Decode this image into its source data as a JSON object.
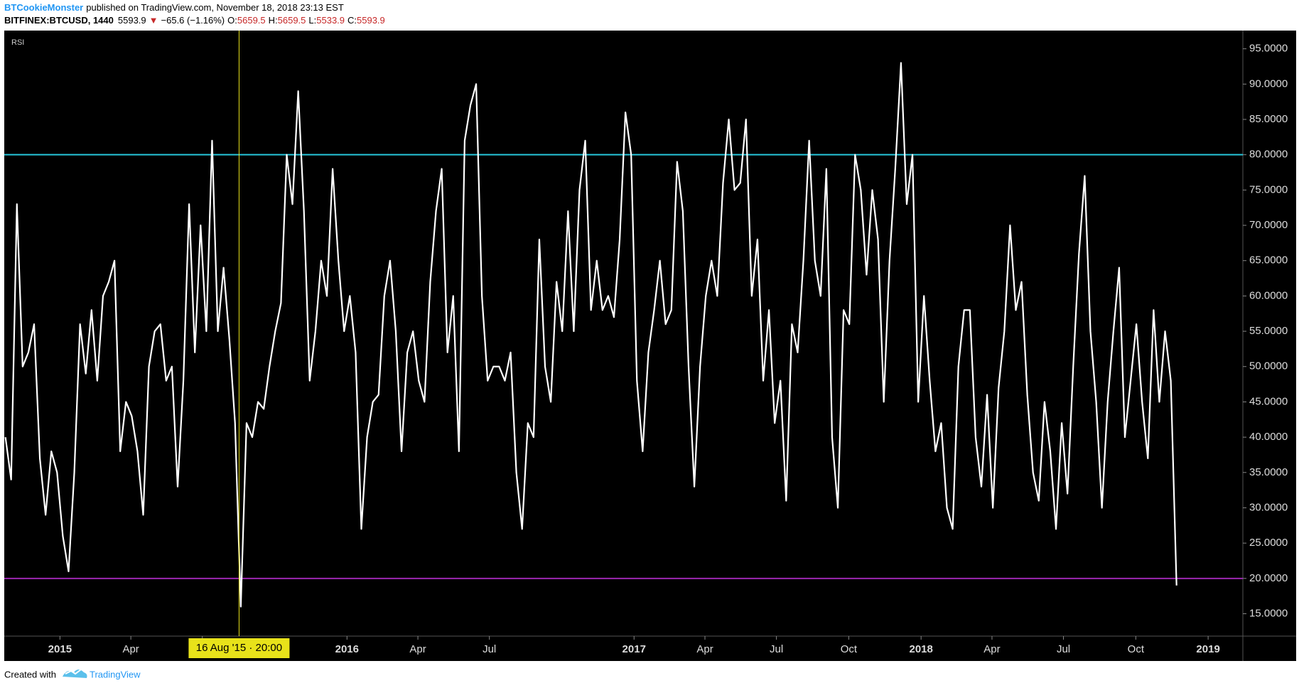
{
  "header": {
    "author": "BTCookieMonster",
    "published": "published on TradingView.com, November 18, 2018 23:13 EST",
    "symbol": "BITFINEX:BTCUSD, 1440",
    "last": "5593.9",
    "arrow": "▼",
    "change": "−65.6 (−1.16%)",
    "ohlc": [
      {
        "key": "O:",
        "value": "5659.5"
      },
      {
        "key": "H:",
        "value": "5659.5"
      },
      {
        "key": "L:",
        "value": "5533.9"
      },
      {
        "key": "C:",
        "value": "5593.9"
      }
    ]
  },
  "footer": {
    "created": "Created with",
    "brand": "TradingView"
  },
  "chart_data": {
    "type": "line",
    "title": "RSI",
    "x": [
      2014.81,
      2014.83,
      2014.85,
      2014.87,
      2014.89,
      2014.91,
      2014.93,
      2014.95,
      2014.97,
      2014.99,
      2015.01,
      2015.03,
      2015.05,
      2015.07,
      2015.09,
      2015.11,
      2015.13,
      2015.15,
      2015.17,
      2015.19,
      2015.21,
      2015.23,
      2015.25,
      2015.27,
      2015.29,
      2015.31,
      2015.33,
      2015.35,
      2015.37,
      2015.39,
      2015.41,
      2015.43,
      2015.45,
      2015.47,
      2015.49,
      2015.51,
      2015.53,
      2015.55,
      2015.57,
      2015.59,
      2015.61,
      2015.63,
      2015.65,
      2015.67,
      2015.69,
      2015.71,
      2015.73,
      2015.75,
      2015.77,
      2015.79,
      2015.81,
      2015.83,
      2015.85,
      2015.87,
      2015.89,
      2015.91,
      2015.93,
      2015.95,
      2015.97,
      2015.99,
      2016.01,
      2016.03,
      2016.05,
      2016.07,
      2016.09,
      2016.11,
      2016.13,
      2016.15,
      2016.17,
      2016.19,
      2016.21,
      2016.23,
      2016.25,
      2016.27,
      2016.29,
      2016.31,
      2016.33,
      2016.35,
      2016.37,
      2016.39,
      2016.41,
      2016.43,
      2016.45,
      2016.47,
      2016.49,
      2016.51,
      2016.53,
      2016.55,
      2016.57,
      2016.59,
      2016.61,
      2016.63,
      2016.65,
      2016.67,
      2016.69,
      2016.71,
      2016.73,
      2016.75,
      2016.77,
      2016.79,
      2016.81,
      2016.83,
      2016.85,
      2016.87,
      2016.89,
      2016.91,
      2016.93,
      2016.95,
      2016.97,
      2016.99,
      2017.01,
      2017.03,
      2017.05,
      2017.07,
      2017.09,
      2017.11,
      2017.13,
      2017.15,
      2017.17,
      2017.19,
      2017.21,
      2017.23,
      2017.25,
      2017.27,
      2017.29,
      2017.31,
      2017.33,
      2017.35,
      2017.37,
      2017.39,
      2017.41,
      2017.43,
      2017.45,
      2017.47,
      2017.49,
      2017.51,
      2017.53,
      2017.55,
      2017.57,
      2017.59,
      2017.61,
      2017.63,
      2017.65,
      2017.67,
      2017.69,
      2017.71,
      2017.73,
      2017.75,
      2017.77,
      2017.79,
      2017.81,
      2017.83,
      2017.85,
      2017.87,
      2017.89,
      2017.91,
      2017.93,
      2017.95,
      2017.97,
      2017.99,
      2018.01,
      2018.03,
      2018.05,
      2018.07,
      2018.09,
      2018.11,
      2018.13,
      2018.15,
      2018.17,
      2018.19,
      2018.21,
      2018.23,
      2018.25,
      2018.27,
      2018.29,
      2018.31,
      2018.33,
      2018.35,
      2018.37,
      2018.39,
      2018.41,
      2018.43,
      2018.45,
      2018.47,
      2018.49,
      2018.51,
      2018.53,
      2018.55,
      2018.57,
      2018.59,
      2018.61,
      2018.63,
      2018.65,
      2018.67,
      2018.69,
      2018.71,
      2018.73,
      2018.75,
      2018.77,
      2018.79,
      2018.81,
      2018.83,
      2018.85,
      2018.87,
      2018.89
    ],
    "series": [
      {
        "name": "RSI",
        "color": "#ffffff",
        "values": [
          40,
          34,
          73,
          50,
          52,
          56,
          37,
          29,
          38,
          35,
          26,
          21,
          35,
          56,
          49,
          58,
          48,
          60,
          62,
          65,
          38,
          45,
          43,
          38,
          29,
          50,
          55,
          56,
          48,
          50,
          33,
          48,
          73,
          52,
          70,
          55,
          82,
          55,
          64,
          54,
          42,
          16,
          42,
          40,
          45,
          44,
          50,
          55,
          59,
          80,
          73,
          89,
          72,
          48,
          55,
          65,
          60,
          78,
          65,
          55,
          60,
          52,
          27,
          40,
          45,
          46,
          60,
          65,
          55,
          38,
          52,
          55,
          48,
          45,
          62,
          72,
          78,
          52,
          60,
          38,
          82,
          87,
          90,
          60,
          48,
          50,
          50,
          48,
          52,
          35,
          27,
          42,
          40,
          68,
          50,
          45,
          62,
          55,
          72,
          55,
          75,
          82,
          58,
          65,
          58,
          60,
          57,
          68,
          86,
          80,
          48,
          38,
          52,
          58,
          65,
          56,
          58,
          79,
          72,
          50,
          33,
          50,
          60,
          65,
          60,
          76,
          85,
          75,
          76,
          85,
          60,
          68,
          48,
          58,
          42,
          48,
          31,
          56,
          52,
          65,
          82,
          65,
          60,
          78,
          40,
          30,
          58,
          56,
          80,
          75,
          63,
          75,
          68,
          45,
          65,
          78,
          93,
          73,
          80,
          45,
          60,
          48,
          38,
          42,
          30,
          27,
          50,
          58,
          58,
          40,
          33,
          46,
          30,
          47,
          55,
          70,
          58,
          62,
          46,
          35,
          31,
          45,
          38,
          27,
          42,
          32,
          50,
          66,
          77,
          55,
          45,
          30,
          45,
          55,
          64,
          40,
          48,
          56,
          45,
          37,
          58,
          45,
          55,
          48,
          19
        ]
      }
    ],
    "hlines": [
      {
        "value": 80,
        "color": "#26c6da"
      },
      {
        "value": 20,
        "color": "#9c27b0"
      }
    ],
    "crosshair": {
      "x": 2015.624,
      "label": "16 Aug '15 · 20:00",
      "color": "#e8e21a"
    },
    "xlim": [
      2014.806,
      2019.121
    ],
    "xticks": [
      2015,
      {
        "value": 2015.247,
        "label": "Apr"
      },
      {
        "value": 2015.496,
        "label": "Jul"
      },
      2016,
      {
        "value": 2016.247,
        "label": "Apr"
      },
      {
        "value": 2016.496,
        "label": "Jul"
      },
      2017,
      {
        "value": 2017.247,
        "label": "Apr"
      },
      {
        "value": 2017.496,
        "label": "Jul"
      },
      {
        "value": 2017.748,
        "label": "Oct"
      },
      2018,
      {
        "value": 2018.247,
        "label": "Apr"
      },
      {
        "value": 2018.496,
        "label": "Jul"
      },
      {
        "value": 2018.748,
        "label": "Oct"
      },
      2019
    ],
    "ylim": [
      11.83,
      97.58
    ],
    "yticks": [
      {
        "value": 15,
        "label": "15.0000"
      },
      {
        "value": 20,
        "label": "20.0000"
      },
      {
        "value": 25,
        "label": "25.0000"
      },
      {
        "value": 30,
        "label": "30.0000"
      },
      {
        "value": 35,
        "label": "35.0000"
      },
      {
        "value": 40,
        "label": "40.0000"
      },
      {
        "value": 45,
        "label": "45.0000"
      },
      {
        "value": 50,
        "label": "50.0000"
      },
      {
        "value": 55,
        "label": "55.0000"
      },
      {
        "value": 60,
        "label": "60.0000"
      },
      {
        "value": 65,
        "label": "65.0000"
      },
      {
        "value": 70,
        "label": "70.0000"
      },
      {
        "value": 75,
        "label": "75.0000"
      },
      {
        "value": 80,
        "label": "80.0000"
      },
      {
        "value": 85,
        "label": "85.0000"
      },
      {
        "value": 90,
        "label": "90.0000"
      },
      {
        "value": 95,
        "label": "95.0000"
      }
    ]
  }
}
